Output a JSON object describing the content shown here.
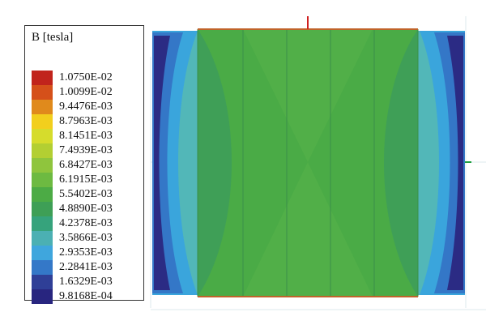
{
  "legend": {
    "title": "B [tesla]",
    "entries": [
      {
        "label": "1.0750E-02",
        "color": "#c1241c"
      },
      {
        "label": "1.0099E-02",
        "color": "#d5501a"
      },
      {
        "label": "9.4476E-03",
        "color": "#e08a1c"
      },
      {
        "label": "8.7963E-03",
        "color": "#f2cf1d"
      },
      {
        "label": "8.1451E-03",
        "color": "#d6dc2c"
      },
      {
        "label": "7.4939E-03",
        "color": "#b3cf32"
      },
      {
        "label": "6.8427E-03",
        "color": "#8fc53d"
      },
      {
        "label": "6.1915E-03",
        "color": "#6dba41"
      },
      {
        "label": "5.5402E-03",
        "color": "#4cab45"
      },
      {
        "label": "4.8890E-03",
        "color": "#3e9f56"
      },
      {
        "label": "4.2378E-03",
        "color": "#36a37c"
      },
      {
        "label": "3.5866E-03",
        "color": "#4bb0b3"
      },
      {
        "label": "2.9353E-03",
        "color": "#3fa6dd"
      },
      {
        "label": "2.2841E-03",
        "color": "#3478c8"
      },
      {
        "label": "1.6329E-03",
        "color": "#2f3f97"
      },
      {
        "label": "9.8168E-04",
        "color": "#28257f"
      }
    ]
  }
}
